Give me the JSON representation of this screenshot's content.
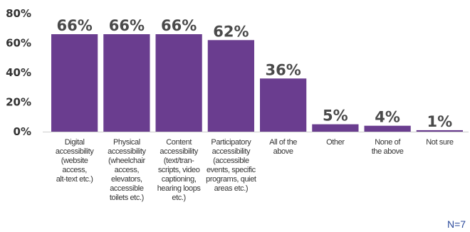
{
  "chart_data": {
    "type": "bar",
    "categories": [
      [
        "Digital",
        "accessibility",
        "(website",
        "access,",
        "alt-text etc.)"
      ],
      [
        "Physical",
        "accessibility",
        "(wheelchair",
        "access,",
        "elevators,",
        "accessible",
        "toilets etc.)"
      ],
      [
        "Content",
        "accessibility",
        "(text/tran-",
        "scripts, video",
        "captioning,",
        "hearing loops",
        "etc.)"
      ],
      [
        "Participatory",
        "accessibility",
        "(accessible",
        "events, specific",
        "programs, quiet",
        "areas etc.)"
      ],
      [
        "All of the",
        "above"
      ],
      [
        "Other"
      ],
      [
        "None of",
        "the above"
      ],
      [
        "Not sure"
      ]
    ],
    "values": [
      66,
      66,
      66,
      62,
      36,
      5,
      4,
      1
    ],
    "data_labels": [
      "66%",
      "66%",
      "66%",
      "62%",
      "36%",
      "5%",
      "4%",
      "1%"
    ],
    "y_ticks": [
      0,
      20,
      40,
      60,
      80
    ],
    "y_tick_labels": [
      "0%",
      "20%",
      "40%",
      "60%",
      "80%"
    ],
    "ylim": [
      0,
      80
    ],
    "bar_color": "#6a3d8f",
    "grid": false,
    "sample_note": "N=7"
  }
}
